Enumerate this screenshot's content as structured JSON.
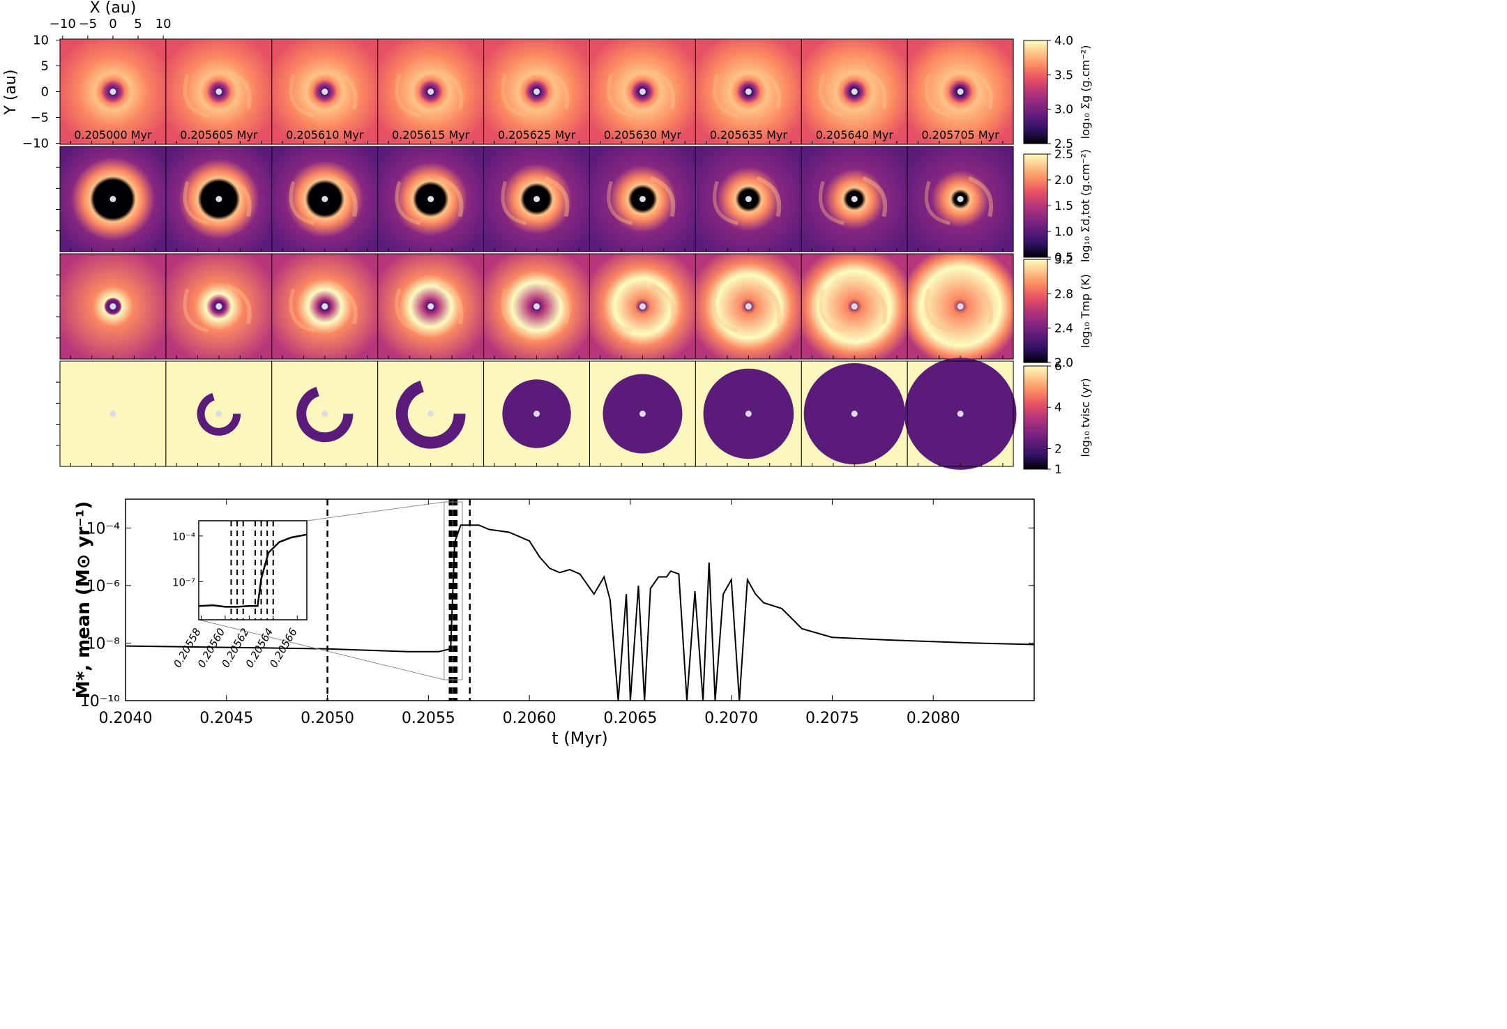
{
  "chart_data": [
    {
      "type": "heatmap",
      "xlabel": "X (au)",
      "ylabel": "Y (au)",
      "xticks": [
        "−10",
        "−5",
        "0",
        "5",
        "10"
      ],
      "yticks": [
        "10",
        "5",
        "0",
        "−5",
        "−10"
      ],
      "xlim": [
        -10,
        10
      ],
      "ylim": [
        -10,
        10
      ],
      "colormap": "magma",
      "times": [
        "0.205000 Myr",
        "0.205605 Myr",
        "0.205610 Myr",
        "0.205615 Myr",
        "0.205625 Myr",
        "0.205630 Myr",
        "0.205635 Myr",
        "0.205640 Myr",
        "0.205705 Myr"
      ],
      "rows": [
        {
          "colorbar_label": "log₁₀ Σg (g.cm⁻²)",
          "range": [
            2.5,
            4.0
          ],
          "ticks": [
            "4.0",
            "3.5",
            "3.0",
            "2.5"
          ]
        },
        {
          "colorbar_label": "log₁₀ Σd,tot (g.cm⁻²)",
          "range": [
            0.5,
            2.5
          ],
          "ticks": [
            "2.5",
            "2.0",
            "1.5",
            "1.0",
            "0.5"
          ]
        },
        {
          "colorbar_label": "log₁₀ Tmp (K)",
          "range": [
            2.0,
            3.2
          ],
          "ticks": [
            "3.2",
            "2.8",
            "2.4",
            "2.0"
          ]
        },
        {
          "colorbar_label": "log₁₀ tvisc (yr)",
          "range": [
            1,
            6
          ],
          "ticks": [
            "6",
            "4",
            "2",
            "1"
          ]
        }
      ]
    },
    {
      "type": "line",
      "title": "",
      "xlabel": "t (Myr)",
      "ylabel": "Ṁ*, mean (M⊙ yr⁻¹)",
      "xlim": [
        0.204,
        0.2085
      ],
      "ylim_log10": [
        -10,
        -3
      ],
      "yscale": "log",
      "xticks": [
        "0.2040",
        "0.2045",
        "0.2050",
        "0.2055",
        "0.2060",
        "0.2065",
        "0.2070",
        "0.2075",
        "0.2080"
      ],
      "yticks": [
        "10⁻⁴",
        "10⁻⁶",
        "10⁻⁸",
        "10⁻¹⁰"
      ],
      "vlines": [
        0.205,
        0.205605,
        0.20561,
        0.205615,
        0.205625,
        0.20563,
        0.205635,
        0.20564,
        0.205705
      ],
      "series_log10": {
        "x": [
          0.204,
          0.2045,
          0.205,
          0.2052,
          0.2054,
          0.20555,
          0.20561,
          0.20563,
          0.20566,
          0.20575,
          0.2058,
          0.2059,
          0.20595,
          0.206,
          0.20605,
          0.2061,
          0.20615,
          0.2062,
          0.20625,
          0.20632,
          0.20637,
          0.2064,
          0.20644,
          0.20648,
          0.2065,
          0.20654,
          0.20657,
          0.2066,
          0.20664,
          0.20668,
          0.2067,
          0.20674,
          0.20678,
          0.20682,
          0.20686,
          0.20689,
          0.20692,
          0.20696,
          0.207,
          0.20704,
          0.20708,
          0.20712,
          0.20716,
          0.20725,
          0.20735,
          0.2075,
          0.2078,
          0.2082,
          0.2085
        ],
        "y": [
          -8.1,
          -8.15,
          -8.2,
          -8.25,
          -8.3,
          -8.3,
          -8.2,
          -4.5,
          -3.9,
          -3.9,
          -4.05,
          -4.15,
          -4.3,
          -4.45,
          -5.0,
          -5.4,
          -5.55,
          -5.45,
          -5.6,
          -6.3,
          -5.7,
          -6.5,
          -10.0,
          -6.3,
          -10.0,
          -6.0,
          -10.0,
          -6.1,
          -5.7,
          -5.7,
          -5.5,
          -5.6,
          -10.0,
          -6.2,
          -10.0,
          -5.2,
          -10.0,
          -6.3,
          -5.8,
          -10.0,
          -5.8,
          -6.3,
          -6.6,
          -6.8,
          -7.5,
          -7.8,
          -7.9,
          -8.0,
          -8.05
        ]
      },
      "inset": {
        "xticks": [
          "0.20558",
          "0.20560",
          "0.20562",
          "0.20564",
          "0.20566"
        ],
        "yticks": [
          "10⁻⁴",
          "10⁻⁷"
        ],
        "xlim": [
          0.205578,
          0.205668
        ],
        "ylim_log10": [
          -9.5,
          -3
        ],
        "vlines": [
          0.205605,
          0.20561,
          0.205615,
          0.205625,
          0.20563,
          0.205635,
          0.20564
        ],
        "x": [
          0.205578,
          0.20559,
          0.2056,
          0.20561,
          0.20562,
          0.205627,
          0.20563,
          0.205636,
          0.205645,
          0.205655,
          0.205668
        ],
        "y": [
          -8.6,
          -8.55,
          -8.65,
          -8.65,
          -8.6,
          -8.6,
          -6.8,
          -5.1,
          -4.4,
          -4.1,
          -3.9
        ]
      }
    }
  ]
}
